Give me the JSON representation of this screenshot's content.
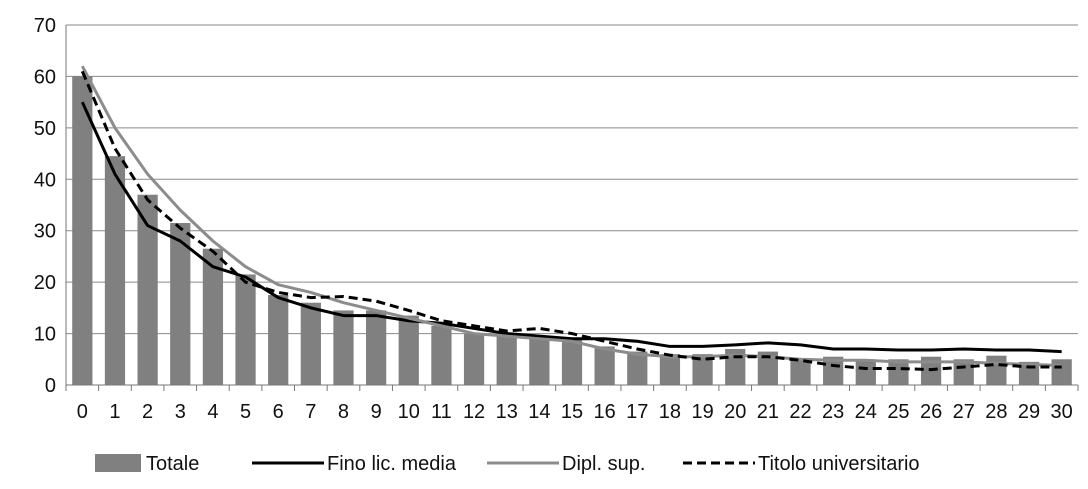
{
  "chart_data": {
    "type": "bar",
    "categories": [
      "0",
      "1",
      "2",
      "3",
      "4",
      "5",
      "6",
      "7",
      "8",
      "9",
      "10",
      "11",
      "12",
      "13",
      "14",
      "15",
      "16",
      "17",
      "18",
      "19",
      "20",
      "21",
      "22",
      "23",
      "24",
      "25",
      "26",
      "27",
      "28",
      "29",
      "30"
    ],
    "ylim": [
      0,
      70
    ],
    "yticks": [
      0,
      10,
      20,
      30,
      40,
      50,
      60,
      70
    ],
    "grid": "horizontal",
    "legend_position": "bottom",
    "series": [
      {
        "name": "Totale",
        "kind": "bar",
        "color": "#808080",
        "values": [
          60,
          44.5,
          37,
          31.5,
          26.5,
          21.5,
          17.5,
          16,
          14.5,
          14.5,
          13.5,
          11.5,
          10,
          9.5,
          9,
          9,
          7.5,
          6.5,
          6,
          6,
          7,
          6.5,
          5,
          5.5,
          5,
          5,
          5.5,
          5,
          5.7,
          4.5,
          5
        ]
      },
      {
        "name": "Fino lic. media",
        "kind": "line",
        "color": "#000000",
        "dash": "solid",
        "values": [
          55,
          41,
          31,
          28,
          23,
          21,
          17,
          15,
          13.5,
          13.5,
          12.5,
          12,
          11,
          10,
          9.5,
          9,
          9,
          8.5,
          7.5,
          7.5,
          7.8,
          8.2,
          7.8,
          7,
          7,
          6.8,
          6.8,
          7,
          6.8,
          6.8,
          6.5
        ]
      },
      {
        "name": "Dipl. sup.",
        "kind": "line",
        "color": "#8c8c8c",
        "dash": "solid",
        "values": [
          62,
          50,
          41,
          34,
          28,
          23,
          19.5,
          18,
          16,
          14.5,
          13,
          11.5,
          10,
          9.5,
          9,
          8.5,
          7,
          6,
          5.5,
          5.5,
          5.8,
          5.5,
          5,
          4.8,
          4.8,
          4.5,
          4.5,
          4.5,
          4.2,
          4,
          3.8
        ]
      },
      {
        "name": "Titolo universitario",
        "kind": "line",
        "color": "#000000",
        "dash": "dashed",
        "values": [
          61,
          46,
          36,
          30.5,
          26,
          20,
          18,
          17,
          17.2,
          16.3,
          14.5,
          12.5,
          11.5,
          10.5,
          11,
          10,
          8.5,
          7,
          5.8,
          5,
          5.5,
          5.5,
          4.8,
          3.8,
          3.2,
          3.2,
          3,
          3.5,
          4,
          3.5,
          3.5
        ]
      }
    ]
  }
}
